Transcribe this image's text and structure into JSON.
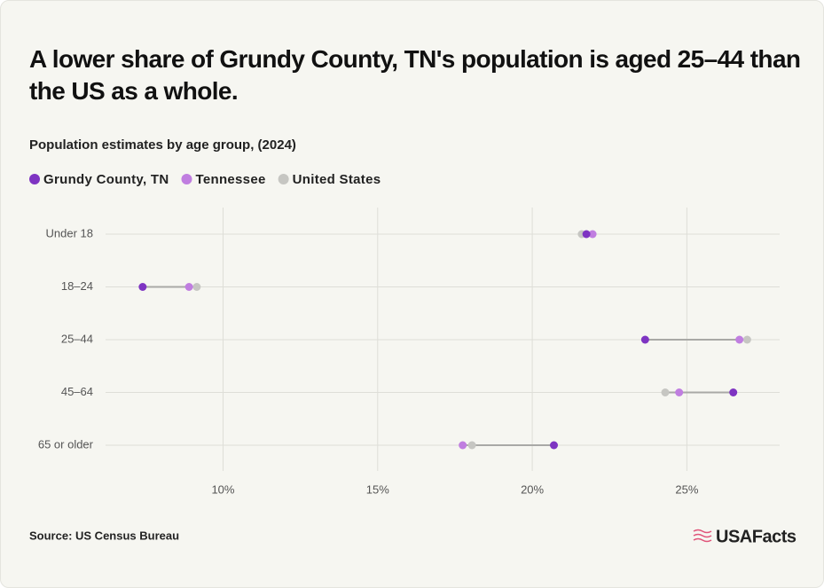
{
  "chart_data": {
    "type": "dot",
    "title": "A lower share of Grundy County, TN's population is aged 25–44 than the US as a whole.",
    "subtitle": "Population estimates by age group, (2024)",
    "categories": [
      "Under 18",
      "18–24",
      "25–44",
      "45–64",
      "65 or older"
    ],
    "series": [
      {
        "name": "Grundy County, TN",
        "color": "#7e34c2",
        "values": [
          21.75,
          7.4,
          23.65,
          26.5,
          20.7
        ]
      },
      {
        "name": "Tennessee",
        "color": "#c07ee0",
        "values": [
          21.95,
          8.9,
          26.7,
          24.75,
          17.75
        ]
      },
      {
        "name": "United States",
        "color": "#c6c6c2",
        "values": [
          21.6,
          9.15,
          26.95,
          24.3,
          18.05
        ]
      }
    ],
    "xlim": [
      6.2,
      28
    ],
    "xticks": [
      {
        "value": 10,
        "label": "10%"
      },
      {
        "value": 15,
        "label": "15%"
      },
      {
        "value": 20,
        "label": "20%"
      },
      {
        "value": 25,
        "label": "25%"
      }
    ],
    "grid": true
  },
  "source": "Source: US Census Bureau",
  "brand": "USAFacts"
}
